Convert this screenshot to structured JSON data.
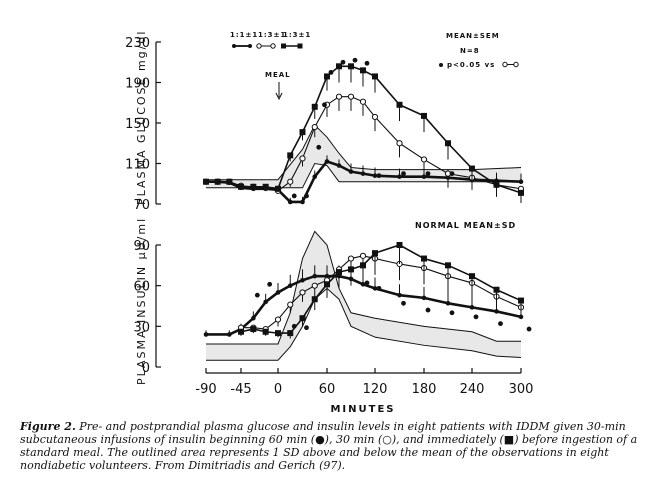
{
  "chart_data": [
    {
      "type": "line",
      "panel": "top",
      "ylabel": "PLASMA GLUCOSE  mg/dl",
      "ylim": [
        70,
        230
      ],
      "yticks": [
        70,
        110,
        150,
        190,
        230
      ],
      "xlim": [
        -90,
        300
      ],
      "annotations": {
        "meal": "MEAL",
        "stats_line1": "MEAN±SEM",
        "stats_line2": "N=8",
        "stats_line3": "p<0.05 vs"
      },
      "legend_labels": [
        "1:1±1",
        "1:3±1",
        "1:3±1"
      ],
      "series": [
        {
          "name": "60 min (filled circle)",
          "marker": "filled-circle",
          "x": [
            -90,
            -75,
            -60,
            -45,
            -30,
            -15,
            0,
            15,
            30,
            45,
            60,
            75,
            90,
            105,
            120,
            150,
            180,
            210,
            240,
            270,
            300
          ],
          "y": [
            92,
            92,
            91,
            86,
            85,
            85,
            84,
            72,
            72,
            97,
            112,
            108,
            102,
            100,
            98,
            97,
            97,
            96,
            94,
            93,
            92
          ],
          "err": [
            3,
            3,
            3,
            4,
            4,
            4,
            4,
            4,
            5,
            6,
            6,
            6,
            8,
            8,
            8,
            8,
            8,
            8,
            8,
            8,
            8
          ]
        },
        {
          "name": "30 min (open circle)",
          "marker": "open-circle",
          "x": [
            -90,
            -75,
            -60,
            -45,
            -30,
            -15,
            0,
            15,
            30,
            45,
            60,
            75,
            90,
            105,
            120,
            150,
            180,
            210,
            240,
            270,
            300
          ],
          "y": [
            92,
            92,
            92,
            88,
            87,
            86,
            83,
            92,
            115,
            146,
            168,
            176,
            176,
            171,
            156,
            130,
            114,
            100,
            96,
            89,
            85
          ],
          "err": [
            3,
            3,
            3,
            3,
            3,
            3,
            3,
            5,
            8,
            10,
            12,
            14,
            14,
            14,
            14,
            14,
            14,
            14,
            12,
            10,
            8
          ]
        },
        {
          "name": "immediately (filled square)",
          "marker": "filled-square",
          "x": [
            -90,
            -75,
            -60,
            -45,
            -30,
            -15,
            0,
            15,
            30,
            45,
            60,
            75,
            90,
            105,
            120,
            150,
            180,
            210,
            240,
            270,
            300
          ],
          "y": [
            92,
            92,
            92,
            87,
            87,
            87,
            85,
            118,
            141,
            166,
            196,
            206,
            206,
            202,
            196,
            168,
            157,
            130,
            105,
            89,
            81
          ],
          "err": [
            3,
            3,
            3,
            3,
            3,
            3,
            3,
            6,
            8,
            12,
            14,
            16,
            16,
            16,
            16,
            16,
            16,
            16,
            14,
            12,
            10
          ]
        }
      ],
      "significance_points": {
        "x": [
          15,
          30,
          45,
          52,
          60,
          75,
          90,
          105,
          120,
          150,
          180,
          210
        ],
        "y": [
          78,
          78,
          126,
          168,
          200,
          210,
          212,
          209,
          98,
          100,
          100,
          100
        ]
      },
      "normal_band": {
        "x": [
          -90,
          0,
          30,
          45,
          60,
          75,
          90,
          120,
          180,
          240,
          300
        ],
        "upper": [
          94,
          94,
          124,
          148,
          136,
          120,
          106,
          104,
          104,
          104,
          106
        ],
        "lower": [
          86,
          86,
          86,
          110,
          108,
          92,
          92,
          92,
          92,
          92,
          92
        ]
      }
    },
    {
      "type": "line",
      "panel": "bottom",
      "ylabel": "PLASMA INSULIN  μU/ml",
      "ylim": [
        0,
        90
      ],
      "yticks": [
        0,
        30,
        60,
        90
      ],
      "xlabel": "MINUTES",
      "xticks": [
        -90,
        -45,
        0,
        60,
        120,
        180,
        240,
        300
      ],
      "xlim": [
        -90,
        300
      ],
      "annotations": {
        "normal": "NORMAL MEAN±SD"
      },
      "series": [
        {
          "name": "60 min (filled circle)",
          "marker": "filled-circle",
          "x": [
            -90,
            -60,
            -45,
            -30,
            -15,
            0,
            15,
            30,
            45,
            60,
            75,
            90,
            105,
            120,
            150,
            180,
            210,
            240,
            270,
            300
          ],
          "y": [
            24,
            24,
            28,
            36,
            48,
            55,
            60,
            64,
            67,
            67,
            67,
            65,
            61,
            58,
            53,
            51,
            47,
            44,
            41,
            37
          ],
          "err": [
            3,
            3,
            4,
            5,
            6,
            7,
            8,
            8,
            8,
            8,
            8,
            8,
            8,
            8,
            8,
            8,
            8,
            8,
            8,
            8
          ]
        },
        {
          "name": "30 min (open circle)",
          "marker": "open-circle",
          "x": [
            -45,
            -30,
            -15,
            0,
            15,
            30,
            45,
            60,
            75,
            90,
            105,
            120,
            150,
            180,
            210,
            240,
            270,
            300
          ],
          "y": [
            29,
            29,
            28,
            35,
            46,
            55,
            60,
            64,
            72,
            80,
            82,
            80,
            76,
            73,
            67,
            62,
            52,
            44
          ],
          "err": [
            3,
            3,
            4,
            5,
            6,
            7,
            8,
            8,
            10,
            12,
            12,
            12,
            12,
            12,
            12,
            12,
            10,
            8
          ]
        },
        {
          "name": "immediately (filled square)",
          "marker": "filled-square",
          "x": [
            -45,
            -30,
            -15,
            0,
            15,
            30,
            45,
            60,
            75,
            90,
            105,
            120,
            150,
            180,
            210,
            240,
            270,
            300
          ],
          "y": [
            26,
            28,
            26,
            25,
            25,
            36,
            50,
            61,
            70,
            72,
            75,
            84,
            90,
            80,
            75,
            67,
            57,
            49
          ],
          "err": [
            3,
            3,
            3,
            3,
            4,
            6,
            8,
            10,
            12,
            12,
            12,
            12,
            14,
            12,
            12,
            12,
            10,
            8
          ]
        }
      ],
      "significance_points": {
        "x": [
          -30,
          -15,
          15,
          30,
          105,
          120,
          150,
          180,
          210,
          240,
          270,
          305
        ],
        "y": [
          53,
          61,
          30,
          29,
          62,
          58,
          47,
          42,
          40,
          37,
          32,
          28
        ]
      },
      "normal_band": {
        "x": [
          -90,
          0,
          15,
          30,
          45,
          60,
          75,
          90,
          120,
          180,
          240,
          270,
          300
        ],
        "upper": [
          17,
          17,
          40,
          80,
          100,
          90,
          58,
          40,
          36,
          30,
          26,
          19,
          19
        ],
        "lower": [
          5,
          5,
          15,
          30,
          50,
          58,
          50,
          30,
          22,
          16,
          12,
          8,
          7
        ]
      }
    }
  ],
  "caption": {
    "label": "Figure 2.",
    "text": " Pre- and postprandial plasma glucose and insulin levels in eight patients with IDDM given 30-min subcutaneous infusions of insulin beginning 60 min (●), 30 min (○), and immediately (■) before ingestion of a standard meal. The outlined area represents 1 SD above and below the mean of the observations in eight nondiabetic volunteers. From Dimitriadis and Gerich (97)."
  }
}
